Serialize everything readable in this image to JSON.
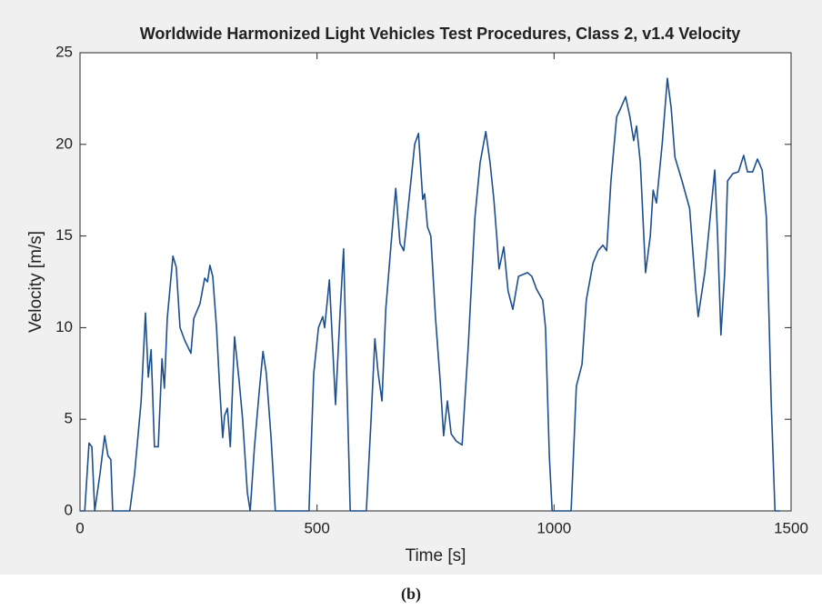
{
  "chart_data": {
    "type": "line",
    "title": "Worldwide Harmonized Light Vehicles Test Procedures, Class 2, v1.4 Velocity",
    "x_label": "Time [s]",
    "y_label": "Velocity [m/s]",
    "caption": "(b)",
    "xlim": [
      0,
      1500
    ],
    "ylim": [
      0,
      25
    ],
    "xticks": [
      0,
      500,
      1000,
      1500
    ],
    "yticks": [
      0,
      5,
      10,
      15,
      20,
      25
    ],
    "grid": false,
    "x": [
      0,
      10,
      19,
      25,
      31,
      42,
      52,
      59,
      65,
      69,
      105,
      115,
      129,
      138,
      144,
      150,
      157,
      165,
      173,
      178,
      184,
      196,
      203,
      211,
      221,
      234,
      240,
      253,
      263,
      269,
      274,
      280,
      288,
      294,
      301,
      305,
      311,
      317,
      326,
      336,
      343,
      353,
      359,
      368,
      378,
      386,
      393,
      403,
      412,
      483,
      493,
      503,
      512,
      516,
      526,
      531,
      539,
      549,
      556,
      562,
      570,
      604,
      614,
      622,
      629,
      637,
      645,
      656,
      666,
      675,
      683,
      694,
      706,
      714,
      723,
      727,
      733,
      740,
      750,
      760,
      767,
      775,
      783,
      794,
      806,
      819,
      833,
      844,
      856,
      865,
      873,
      879,
      884,
      894,
      903,
      913,
      925,
      944,
      953,
      963,
      976,
      982,
      990,
      996,
      1036,
      1047,
      1059,
      1068,
      1082,
      1093,
      1103,
      1111,
      1120,
      1132,
      1141,
      1151,
      1160,
      1168,
      1174,
      1182,
      1193,
      1203,
      1209,
      1216,
      1228,
      1239,
      1247,
      1255,
      1270,
      1286,
      1299,
      1304,
      1318,
      1339,
      1345,
      1352,
      1360,
      1366,
      1377,
      1389,
      1400,
      1408,
      1419,
      1429,
      1439,
      1448,
      1458,
      1466,
      1477
    ],
    "series": [
      {
        "name": "Velocity",
        "color": "#1d4f8e",
        "values": [
          0,
          0,
          3.7,
          3.5,
          0,
          2,
          4.1,
          3,
          2.8,
          0,
          0,
          2,
          6,
          10.8,
          7.3,
          8.8,
          3.5,
          3.5,
          8.3,
          6.7,
          10.5,
          13.9,
          13.3,
          10,
          9.3,
          8.6,
          10.5,
          11.3,
          12.7,
          12.5,
          13.4,
          12.8,
          10,
          7,
          4,
          5.2,
          5.6,
          3.5,
          9.5,
          7,
          5,
          1,
          0,
          3.5,
          6.5,
          8.7,
          7.5,
          4,
          0,
          0,
          7.5,
          10,
          10.6,
          10,
          12.6,
          10,
          5.8,
          11,
          14.3,
          8,
          0,
          0,
          5,
          9.4,
          7.5,
          6,
          11,
          14.5,
          17.6,
          14.6,
          14.2,
          17,
          20,
          20.6,
          17,
          17.3,
          15.5,
          15,
          10.5,
          7,
          4.1,
          6,
          4.2,
          3.8,
          3.6,
          9,
          16,
          19,
          20.7,
          19,
          17,
          15,
          13.2,
          14.4,
          12,
          11,
          12.8,
          13,
          12.8,
          12.1,
          11.5,
          10,
          3,
          0,
          0,
          6.8,
          8,
          11.5,
          13.5,
          14.2,
          14.5,
          14.2,
          18,
          21.5,
          22,
          22.6,
          21.5,
          20.2,
          21,
          19,
          13,
          15,
          17.5,
          16.8,
          20,
          23.6,
          22,
          19.3,
          18,
          16.5,
          12,
          10.6,
          13,
          18.6,
          15,
          9.6,
          13,
          18,
          18.4,
          18.5,
          19.4,
          18.5,
          18.5,
          19.2,
          18.6,
          16,
          6,
          0,
          0
        ]
      }
    ]
  }
}
